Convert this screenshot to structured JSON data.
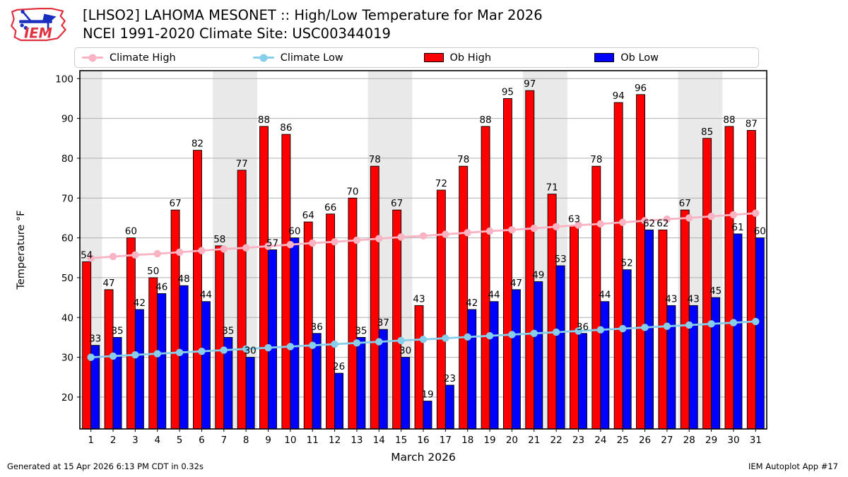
{
  "header": {
    "logo_text": "IEM",
    "title_line1": "[LHSO2] LAHOMA MESONET :: High/Low Temperature for Mar 2026",
    "title_line2": "NCEI 1991-2020 Climate Site: USC00344019"
  },
  "legend": {
    "items": [
      {
        "label": "Climate High",
        "type": "line",
        "color": "#f9b3c2"
      },
      {
        "label": "Climate Low",
        "type": "line",
        "color": "#87ceeb"
      },
      {
        "label": "Ob High",
        "type": "rect",
        "color": "#ff0000"
      },
      {
        "label": "Ob Low",
        "type": "rect",
        "color": "#0000ff"
      }
    ]
  },
  "chart_data": {
    "type": "bar+line",
    "title": "[LHSO2] LAHOMA MESONET :: High/Low Temperature for Mar 2026",
    "subtitle": "NCEI 1991-2020 Climate Site: USC00344019",
    "xlabel": "March 2026",
    "ylabel": "Temperature °F",
    "x": [
      1,
      2,
      3,
      4,
      5,
      6,
      7,
      8,
      9,
      10,
      11,
      12,
      13,
      14,
      15,
      16,
      17,
      18,
      19,
      20,
      21,
      22,
      23,
      24,
      25,
      26,
      27,
      28,
      29,
      30,
      31
    ],
    "series": [
      {
        "name": "Ob High",
        "type": "bar",
        "color": "#ff0000",
        "values": [
          54,
          47,
          60,
          50,
          67,
          82,
          58,
          77,
          88,
          86,
          64,
          66,
          70,
          78,
          67,
          43,
          72,
          78,
          88,
          95,
          97,
          71,
          63,
          78,
          94,
          96,
          62,
          67,
          85,
          88,
          87
        ]
      },
      {
        "name": "Ob Low",
        "type": "bar",
        "color": "#0000ff",
        "values": [
          33,
          35,
          42,
          46,
          48,
          44,
          35,
          30,
          57,
          60,
          36,
          26,
          35,
          37,
          30,
          19,
          23,
          42,
          44,
          47,
          49,
          53,
          36,
          44,
          52,
          62,
          43,
          43,
          45,
          61,
          60
        ]
      },
      {
        "name": "Climate High",
        "type": "line",
        "color": "#f9b3c2",
        "values": [
          54.9,
          55.3,
          55.7,
          56.0,
          56.4,
          56.8,
          57.2,
          57.5,
          57.9,
          58.3,
          58.7,
          59.0,
          59.4,
          59.8,
          60.2,
          60.5,
          60.9,
          61.3,
          61.7,
          62.0,
          62.4,
          62.8,
          63.2,
          63.5,
          63.9,
          64.3,
          64.7,
          65.0,
          65.4,
          65.8,
          66.2
        ]
      },
      {
        "name": "Climate Low",
        "type": "line",
        "color": "#87ceeb",
        "values": [
          30.0,
          30.3,
          30.6,
          30.9,
          31.2,
          31.5,
          31.8,
          32.1,
          32.4,
          32.7,
          33.0,
          33.3,
          33.6,
          33.9,
          34.2,
          34.5,
          34.8,
          35.1,
          35.4,
          35.7,
          36.0,
          36.3,
          36.6,
          36.9,
          37.2,
          37.5,
          37.8,
          38.1,
          38.4,
          38.7,
          39.0
        ]
      }
    ],
    "ylim": [
      12,
      102
    ],
    "yticks": [
      20,
      30,
      40,
      50,
      60,
      70,
      80,
      90,
      100
    ],
    "weekend_days": [
      1,
      7,
      8,
      14,
      15,
      21,
      22,
      28,
      29
    ],
    "grid": true,
    "legend_position": "top",
    "band_color": "#e9e9e9",
    "grid_color": "#b0b0b0"
  },
  "footer": {
    "left": "Generated at 15 Apr 2026 6:13 PM CDT in 0.32s",
    "right": "IEM Autoplot App #17"
  }
}
